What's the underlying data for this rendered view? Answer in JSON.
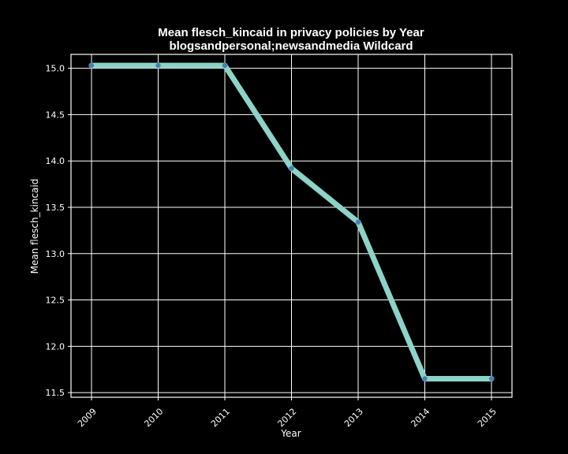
{
  "chart_data": {
    "type": "line",
    "title": "Mean flesch_kincaid in privacy policies by Year",
    "subtitle": "blogsandpersonal;newsandmedia Wildcard",
    "xlabel": "Year",
    "ylabel": "Mean flesch_kincaid",
    "x": [
      "2009",
      "2010",
      "2011",
      "2012",
      "2013",
      "2014",
      "2015"
    ],
    "values": [
      15.03,
      15.03,
      15.03,
      13.92,
      13.34,
      11.65,
      11.65
    ],
    "ylim": [
      11.45,
      15.15
    ],
    "yticks": [
      11.5,
      12.0,
      12.5,
      13.0,
      13.5,
      14.0,
      14.5,
      15.0
    ],
    "ytick_labels": [
      "11.5",
      "12.0",
      "12.5",
      "13.0",
      "13.5",
      "14.0",
      "14.5",
      "15.0"
    ],
    "grid": true,
    "line_color": "#8dd3c7",
    "marker_color": "#4a7fb5",
    "background_color": "#000000",
    "foreground_color": "#ffffff"
  }
}
